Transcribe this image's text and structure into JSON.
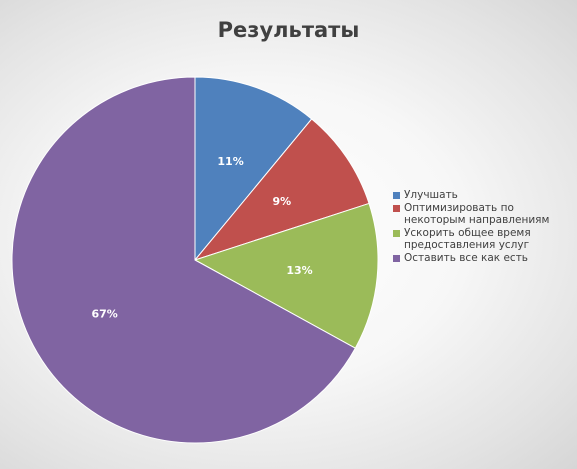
{
  "chart_data": {
    "type": "pie",
    "title": "Результаты",
    "categories": [
      "Улучшать",
      "Оптимизировать по некоторым направлениям",
      "Ускорить общее время предоставления услуг",
      "Оставить все как есть"
    ],
    "values": [
      11,
      9,
      13,
      67
    ],
    "data_labels": [
      "11%",
      "9%",
      "13%",
      "67%"
    ],
    "colors": [
      "#4f81bd",
      "#c0504d",
      "#9bbb59",
      "#8064a2"
    ],
    "legend": "right",
    "start_angle": "top, clockwise"
  }
}
